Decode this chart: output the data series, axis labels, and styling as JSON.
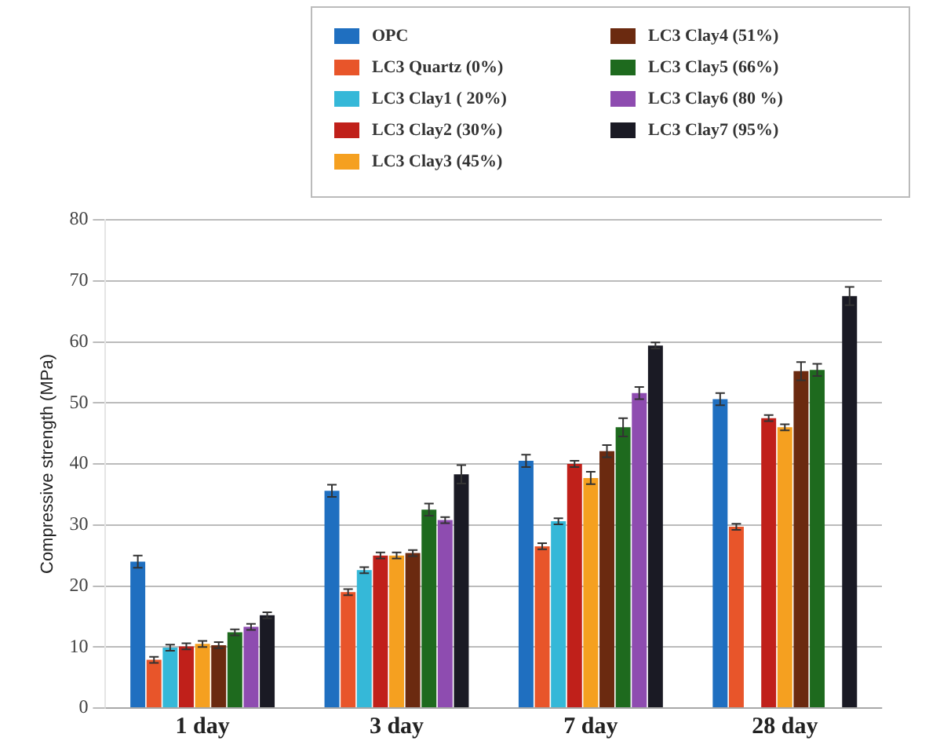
{
  "chart_data": {
    "type": "bar",
    "ylabel": "Compressive strength (MPa)",
    "categories": [
      "1 day",
      "3 day",
      "7 day",
      "28 day"
    ],
    "series": [
      {
        "name": "OPC",
        "color": "#1f6fc0",
        "values": [
          24,
          35.6,
          40.5,
          50.6
        ],
        "errors": [
          1,
          1,
          1,
          1
        ]
      },
      {
        "name": "LC3 Quartz (0%)",
        "color": "#e8552a",
        "values": [
          7.9,
          19,
          26.5,
          29.7
        ],
        "errors": [
          0.5,
          0.5,
          0.5,
          0.5
        ]
      },
      {
        "name": "LC3 Clay1 ( 20%)",
        "color": "#35b8d8",
        "values": [
          9.9,
          22.6,
          30.6,
          null
        ],
        "errors": [
          0.5,
          0.5,
          0.5,
          null
        ]
      },
      {
        "name": "LC3 Clay2 (30%)",
        "color": "#c0201a",
        "values": [
          10.1,
          25,
          40,
          47.5
        ],
        "errors": [
          0.5,
          0.5,
          0.5,
          0.5
        ]
      },
      {
        "name": "LC3 Clay3 (45%)",
        "color": "#f5a020",
        "values": [
          10.5,
          25,
          37.7,
          46
        ],
        "errors": [
          0.5,
          0.5,
          1,
          0.5
        ]
      },
      {
        "name": "LC3 Clay4 (51%)",
        "color": "#6b2a10",
        "values": [
          10.3,
          25.4,
          42.1,
          55.2
        ],
        "errors": [
          0.5,
          0.5,
          1,
          1.5
        ]
      },
      {
        "name": "LC3 Clay5 (66%)",
        "color": "#1e6a1e",
        "values": [
          12.4,
          32.5,
          46,
          55.4
        ],
        "errors": [
          0.5,
          1,
          1.5,
          1
        ]
      },
      {
        "name": "LC3 Clay6 (80 %)",
        "color": "#8e4cb0",
        "values": [
          13.3,
          30.8,
          51.6,
          null
        ],
        "errors": [
          0.5,
          0.5,
          1,
          null
        ]
      },
      {
        "name": "LC3 Clay7 (95%)",
        "color": "#1a1a24",
        "values": [
          15.2,
          38.3,
          59.4,
          67.5
        ],
        "errors": [
          0.5,
          1.5,
          0.5,
          1.5
        ]
      }
    ],
    "ylim": [
      0,
      80
    ],
    "yticks": [
      0,
      10,
      20,
      30,
      40,
      50,
      60,
      70,
      80
    ],
    "grid": "y",
    "legend": "top right"
  }
}
